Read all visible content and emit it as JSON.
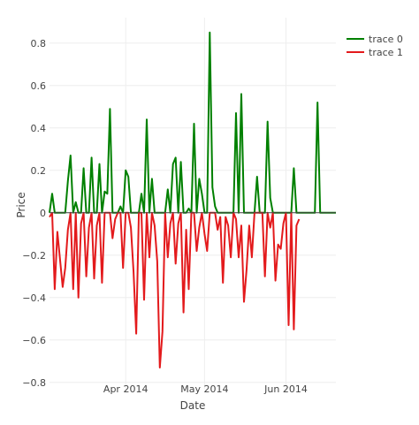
{
  "chart_data": {
    "type": "line",
    "title": "",
    "xlabel": "Date",
    "ylabel": "Price",
    "ylim": [
      -0.83,
      0.92
    ],
    "xlim": [
      "2014-03-03",
      "2014-06-20"
    ],
    "x_ticks": [
      {
        "date": "2014-04-01",
        "label": "Apr 2014"
      },
      {
        "date": "2014-05-01",
        "label": "May 2014"
      },
      {
        "date": "2014-06-01",
        "label": "Jun 2014"
      }
    ],
    "y_ticks": [
      {
        "value": 0.8,
        "label": "0.8"
      },
      {
        "value": 0.6,
        "label": "0.6"
      },
      {
        "value": 0.4,
        "label": "0.4"
      },
      {
        "value": 0.2,
        "label": "0.2"
      },
      {
        "value": 0,
        "label": "0"
      },
      {
        "value": -0.2,
        "label": "−0.2"
      },
      {
        "value": -0.4,
        "label": "−0.4"
      },
      {
        "value": -0.6,
        "label": "−0.6"
      },
      {
        "value": -0.8,
        "label": "−0.8"
      }
    ],
    "grid": true,
    "zero_line": true,
    "legend_position": "top-right",
    "series": [
      {
        "name": "trace 0",
        "color": "#008000",
        "points": [
          [
            "2014-03-03",
            0.0
          ],
          [
            "2014-03-04",
            0.09
          ],
          [
            "2014-03-05",
            0.0
          ],
          [
            "2014-03-09",
            0.0
          ],
          [
            "2014-03-10",
            0.15
          ],
          [
            "2014-03-11",
            0.27
          ],
          [
            "2014-03-12",
            0.0
          ],
          [
            "2014-03-13",
            0.05
          ],
          [
            "2014-03-14",
            0.0
          ],
          [
            "2014-03-15",
            0.0
          ],
          [
            "2014-03-16",
            0.21
          ],
          [
            "2014-03-17",
            0.0
          ],
          [
            "2014-03-18",
            0.0
          ],
          [
            "2014-03-19",
            0.26
          ],
          [
            "2014-03-20",
            0.0
          ],
          [
            "2014-03-21",
            0.0
          ],
          [
            "2014-03-22",
            0.23
          ],
          [
            "2014-03-23",
            0.0
          ],
          [
            "2014-03-24",
            0.1
          ],
          [
            "2014-03-25",
            0.09
          ],
          [
            "2014-03-26",
            0.49
          ],
          [
            "2014-03-27",
            0.0
          ],
          [
            "2014-03-28",
            0.0
          ],
          [
            "2014-03-29",
            0.0
          ],
          [
            "2014-03-30",
            0.03
          ],
          [
            "2014-03-31",
            0.0
          ],
          [
            "2014-04-01",
            0.2
          ],
          [
            "2014-04-02",
            0.17
          ],
          [
            "2014-04-03",
            0.0
          ],
          [
            "2014-04-04",
            0.0
          ],
          [
            "2014-04-05",
            0.0
          ],
          [
            "2014-04-06",
            0.0
          ],
          [
            "2014-04-07",
            0.09
          ],
          [
            "2014-04-08",
            0.0
          ],
          [
            "2014-04-09",
            0.44
          ],
          [
            "2014-04-10",
            0.0
          ],
          [
            "2014-04-11",
            0.16
          ],
          [
            "2014-04-12",
            0.0
          ],
          [
            "2014-04-13",
            0.0
          ],
          [
            "2014-04-14",
            0.0
          ],
          [
            "2014-04-15",
            0.0
          ],
          [
            "2014-04-16",
            0.0
          ],
          [
            "2014-04-17",
            0.11
          ],
          [
            "2014-04-18",
            0.0
          ],
          [
            "2014-04-19",
            0.23
          ],
          [
            "2014-04-20",
            0.26
          ],
          [
            "2014-04-21",
            0.0
          ],
          [
            "2014-04-22",
            0.24
          ],
          [
            "2014-04-23",
            0.0
          ],
          [
            "2014-04-24",
            0.0
          ],
          [
            "2014-04-25",
            0.02
          ],
          [
            "2014-04-26",
            0.0
          ],
          [
            "2014-04-27",
            0.42
          ],
          [
            "2014-04-28",
            0.0
          ],
          [
            "2014-04-29",
            0.16
          ],
          [
            "2014-04-30",
            0.09
          ],
          [
            "2014-05-01",
            0.0
          ],
          [
            "2014-05-02",
            0.0
          ],
          [
            "2014-05-03",
            0.85
          ],
          [
            "2014-05-04",
            0.12
          ],
          [
            "2014-05-05",
            0.03
          ],
          [
            "2014-05-06",
            0.0
          ],
          [
            "2014-05-07",
            0.0
          ],
          [
            "2014-05-08",
            0.0
          ],
          [
            "2014-05-09",
            0.0
          ],
          [
            "2014-05-10",
            0.0
          ],
          [
            "2014-05-11",
            0.0
          ],
          [
            "2014-05-12",
            0.0
          ],
          [
            "2014-05-13",
            0.47
          ],
          [
            "2014-05-14",
            0.0
          ],
          [
            "2014-05-15",
            0.56
          ],
          [
            "2014-05-16",
            0.0
          ],
          [
            "2014-05-17",
            0.0
          ],
          [
            "2014-05-18",
            0.0
          ],
          [
            "2014-05-19",
            0.0
          ],
          [
            "2014-05-20",
            0.0
          ],
          [
            "2014-05-21",
            0.17
          ],
          [
            "2014-05-22",
            0.0
          ],
          [
            "2014-05-23",
            0.0
          ],
          [
            "2014-05-24",
            0.0
          ],
          [
            "2014-05-25",
            0.43
          ],
          [
            "2014-05-26",
            0.07
          ],
          [
            "2014-05-27",
            0.0
          ],
          [
            "2014-05-28",
            0.0
          ],
          [
            "2014-05-29",
            0.0
          ],
          [
            "2014-05-30",
            0.0
          ],
          [
            "2014-05-31",
            0.0
          ],
          [
            "2014-06-01",
            0.0
          ],
          [
            "2014-06-02",
            0.0
          ],
          [
            "2014-06-03",
            0.0
          ],
          [
            "2014-06-04",
            0.21
          ],
          [
            "2014-06-05",
            0.0
          ],
          [
            "2014-06-06",
            0.0
          ],
          [
            "2014-06-07",
            0.0
          ],
          [
            "2014-06-08",
            0.0
          ],
          [
            "2014-06-09",
            0.0
          ],
          [
            "2014-06-10",
            0.0
          ],
          [
            "2014-06-11",
            0.0
          ],
          [
            "2014-06-12",
            0.0
          ],
          [
            "2014-06-13",
            0.52
          ],
          [
            "2014-06-14",
            0.0
          ],
          [
            "2014-06-15",
            0.0
          ],
          [
            "2014-06-16",
            0.0
          ],
          [
            "2014-06-20",
            0.0
          ]
        ]
      },
      {
        "name": "trace 1",
        "color": "#e31a1c",
        "points": [
          [
            "2014-03-03",
            -0.02
          ],
          [
            "2014-03-04",
            0.0
          ],
          [
            "2014-03-05",
            -0.36
          ],
          [
            "2014-03-06",
            -0.09
          ],
          [
            "2014-03-07",
            -0.22
          ],
          [
            "2014-03-08",
            -0.35
          ],
          [
            "2014-03-09",
            -0.26
          ],
          [
            "2014-03-10",
            -0.08
          ],
          [
            "2014-03-11",
            0.0
          ],
          [
            "2014-03-12",
            -0.36
          ],
          [
            "2014-03-13",
            0.0
          ],
          [
            "2014-03-14",
            -0.4
          ],
          [
            "2014-03-15",
            -0.05
          ],
          [
            "2014-03-16",
            0.0
          ],
          [
            "2014-03-17",
            -0.3
          ],
          [
            "2014-03-18",
            -0.07
          ],
          [
            "2014-03-19",
            0.0
          ],
          [
            "2014-03-20",
            -0.31
          ],
          [
            "2014-03-21",
            -0.06
          ],
          [
            "2014-03-22",
            0.0
          ],
          [
            "2014-03-23",
            -0.33
          ],
          [
            "2014-03-24",
            0.0
          ],
          [
            "2014-03-25",
            0.0
          ],
          [
            "2014-03-26",
            0.0
          ],
          [
            "2014-03-27",
            -0.12
          ],
          [
            "2014-03-28",
            -0.03
          ],
          [
            "2014-03-29",
            0.0
          ],
          [
            "2014-03-30",
            0.0
          ],
          [
            "2014-03-31",
            -0.26
          ],
          [
            "2014-04-01",
            0.0
          ],
          [
            "2014-04-02",
            0.0
          ],
          [
            "2014-04-03",
            -0.07
          ],
          [
            "2014-04-04",
            -0.28
          ],
          [
            "2014-04-05",
            -0.57
          ],
          [
            "2014-04-06",
            0.0
          ],
          [
            "2014-04-07",
            0.0
          ],
          [
            "2014-04-08",
            -0.41
          ],
          [
            "2014-04-09",
            0.0
          ],
          [
            "2014-04-10",
            -0.21
          ],
          [
            "2014-04-11",
            0.0
          ],
          [
            "2014-04-12",
            -0.06
          ],
          [
            "2014-04-13",
            -0.23
          ],
          [
            "2014-04-14",
            -0.73
          ],
          [
            "2014-04-15",
            -0.56
          ],
          [
            "2014-04-16",
            0.0
          ],
          [
            "2014-04-17",
            -0.21
          ],
          [
            "2014-04-18",
            -0.05
          ],
          [
            "2014-04-19",
            0.0
          ],
          [
            "2014-04-20",
            -0.24
          ],
          [
            "2014-04-21",
            -0.05
          ],
          [
            "2014-04-22",
            0.0
          ],
          [
            "2014-04-23",
            -0.47
          ],
          [
            "2014-04-24",
            -0.08
          ],
          [
            "2014-04-25",
            -0.36
          ],
          [
            "2014-04-26",
            0.0
          ],
          [
            "2014-04-27",
            0.0
          ],
          [
            "2014-04-28",
            -0.18
          ],
          [
            "2014-04-29",
            -0.07
          ],
          [
            "2014-04-30",
            0.0
          ],
          [
            "2014-05-01",
            -0.1
          ],
          [
            "2014-05-02",
            -0.18
          ],
          [
            "2014-05-03",
            0.0
          ],
          [
            "2014-05-04",
            0.0
          ],
          [
            "2014-05-05",
            0.0
          ],
          [
            "2014-05-06",
            -0.08
          ],
          [
            "2014-05-07",
            -0.02
          ],
          [
            "2014-05-08",
            -0.33
          ],
          [
            "2014-05-09",
            -0.02
          ],
          [
            "2014-05-10",
            -0.06
          ],
          [
            "2014-05-11",
            -0.21
          ],
          [
            "2014-05-12",
            0.0
          ],
          [
            "2014-05-13",
            -0.03
          ],
          [
            "2014-05-14",
            -0.21
          ],
          [
            "2014-05-15",
            -0.06
          ],
          [
            "2014-05-16",
            -0.42
          ],
          [
            "2014-05-17",
            -0.27
          ],
          [
            "2014-05-18",
            -0.06
          ],
          [
            "2014-05-19",
            -0.21
          ],
          [
            "2014-05-20",
            0.0
          ],
          [
            "2014-05-21",
            0.0
          ],
          [
            "2014-05-22",
            0.0
          ],
          [
            "2014-05-23",
            0.0
          ],
          [
            "2014-05-24",
            -0.3
          ],
          [
            "2014-05-25",
            0.0
          ],
          [
            "2014-05-26",
            -0.07
          ],
          [
            "2014-05-27",
            0.0
          ],
          [
            "2014-05-28",
            -0.32
          ],
          [
            "2014-05-29",
            -0.15
          ],
          [
            "2014-05-30",
            -0.17
          ],
          [
            "2014-05-31",
            -0.05
          ],
          [
            "2014-06-01",
            0.0
          ],
          [
            "2014-06-02",
            -0.53
          ],
          [
            "2014-06-03",
            0.0
          ],
          [
            "2014-06-04",
            -0.55
          ],
          [
            "2014-06-05",
            -0.06
          ],
          [
            "2014-06-06",
            -0.03
          ]
        ]
      }
    ]
  }
}
